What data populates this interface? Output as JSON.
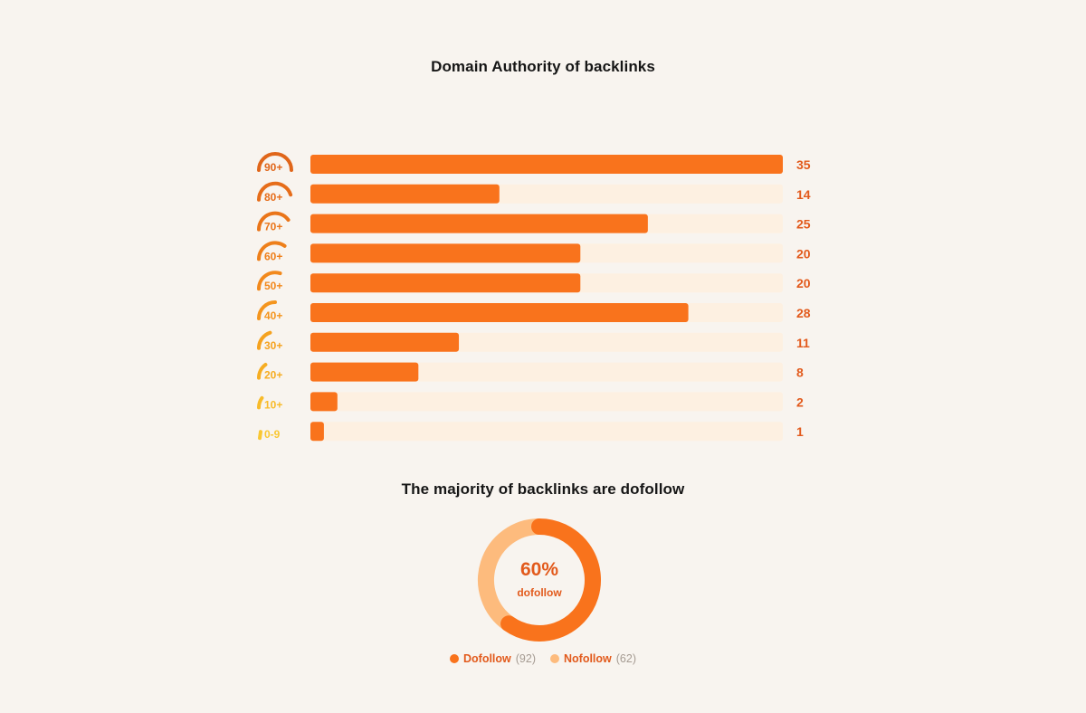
{
  "bar_title": "Domain Authority of backlinks",
  "donut_title": "The majority of backlinks are dofollow",
  "colors": {
    "bar": "#f9731c",
    "track": "#fdf0e1",
    "value_label": "#e25a1c",
    "dofollow": "#f9731c",
    "nofollow": "#fdbb7d"
  },
  "chart_data": [
    {
      "type": "bar",
      "orientation": "horizontal",
      "title": "Domain Authority of backlinks",
      "categories": [
        "90+",
        "80+",
        "70+",
        "60+",
        "50+",
        "40+",
        "30+",
        "20+",
        "10+",
        "0-9"
      ],
      "values": [
        35,
        14,
        25,
        20,
        20,
        28,
        11,
        8,
        2,
        1
      ],
      "xlim": [
        0,
        35
      ],
      "grid": false,
      "category_icon": "gauge-arc-icon",
      "category_colors": [
        "#e0661a",
        "#e66d1a",
        "#ea7519",
        "#ee7f1a",
        "#f2891c",
        "#f4951e",
        "#f5a21f",
        "#f6ad22",
        "#f8bb2a",
        "#f9c733"
      ]
    },
    {
      "type": "pie",
      "style": "donut",
      "title": "The majority of backlinks are dofollow",
      "labels": [
        "Dofollow",
        "Nofollow"
      ],
      "values": [
        92,
        62
      ],
      "center_value": "60%",
      "center_label": "dofollow",
      "legend": "bottom"
    }
  ],
  "legend": [
    {
      "name": "Dofollow",
      "count": "(92)"
    },
    {
      "name": "Nofollow",
      "count": "(62)"
    }
  ]
}
